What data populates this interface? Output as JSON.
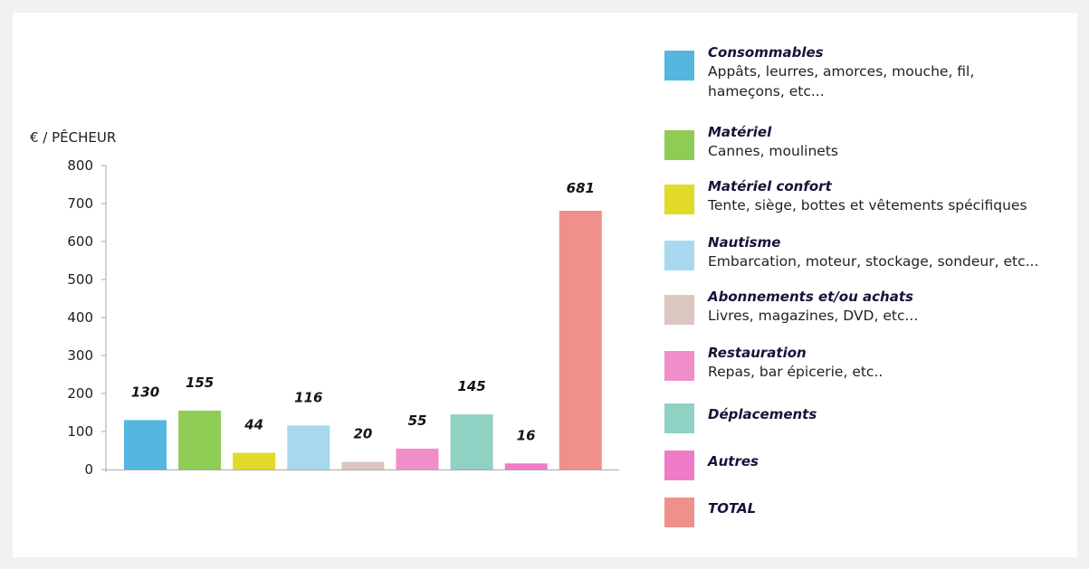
{
  "colors": {
    "background": "#f1f1f2",
    "card": "#ffffff",
    "axis": "#a9a9a9",
    "text": "#1d1d1d"
  },
  "chart_data": {
    "type": "bar",
    "ylabel": "€ / PÊCHEUR",
    "ylim": [
      0,
      800
    ],
    "yticks": [
      0,
      100,
      200,
      300,
      400,
      500,
      600,
      700,
      800
    ],
    "grid": false,
    "legend_position": "right",
    "categories": [
      "Consommables",
      "Matériel",
      "Matériel confort",
      "Nautisme",
      "Abonnements et/ou achats",
      "Restauration",
      "Déplacements",
      "Autres",
      "TOTAL"
    ],
    "values": [
      130,
      155,
      44,
      116,
      20,
      55,
      145,
      16,
      681
    ],
    "colors": [
      "#55b6e0",
      "#8fcc55",
      "#e3d928",
      "#a8d8f0",
      "#d9c7c0",
      "#f08ecb",
      "#8fd1c3",
      "#f07cc8",
      "#f0908a"
    ]
  },
  "legend": {
    "items": [
      {
        "name": "Consommables",
        "lines": [
          "Appâts, leurres, amorces, mouche, fil,",
          "hameçons, etc..."
        ],
        "color": "#55b6e0"
      },
      {
        "name": "Matériel",
        "lines": [
          "Cannes, moulinets"
        ],
        "color": "#8fcc55"
      },
      {
        "name": "Matériel confort",
        "lines": [
          "Tente, siège, bottes et vêtements spécifiques"
        ],
        "color": "#e3d928"
      },
      {
        "name": "Nautisme",
        "lines": [
          "Embarcation, moteur, stockage, sondeur, etc..."
        ],
        "color": "#a8d8f0"
      },
      {
        "name": "Abonnements et/ou achats",
        "lines": [
          "Livres, magazines, DVD, etc..."
        ],
        "color": "#d9c7c0"
      },
      {
        "name": "Restauration",
        "lines": [
          "Repas, bar épicerie, etc.."
        ],
        "color": "#f08ecb"
      },
      {
        "name": "Déplacements",
        "lines": [],
        "color": "#8fd1c3"
      },
      {
        "name": "Autres",
        "lines": [],
        "color": "#f07cc8"
      },
      {
        "name": "TOTAL",
        "lines": [],
        "color": "#f0908a"
      }
    ]
  }
}
